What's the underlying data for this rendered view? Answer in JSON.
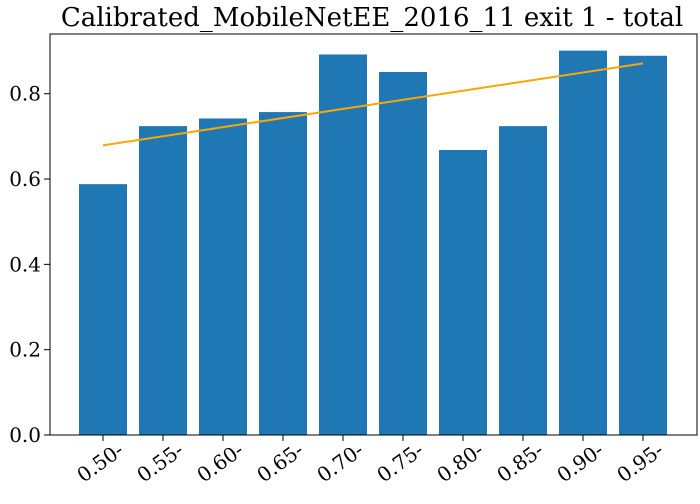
{
  "chart_data": {
    "type": "bar",
    "title": "Calibrated_MobileNetEE_2016_11 exit 1 - total",
    "xlabel": "",
    "ylabel": "",
    "categories": [
      "0.50-",
      "0.55-",
      "0.60-",
      "0.65-",
      "0.70-",
      "0.75-",
      "0.80-",
      "0.85-",
      "0.90-",
      "0.95-"
    ],
    "series": [
      {
        "values": [
          0.588,
          0.724,
          0.742,
          0.757,
          0.892,
          0.851,
          0.668,
          0.724,
          0.901,
          0.889
        ],
        "color": "#1f77b4"
      }
    ],
    "trend_line": {
      "start": 0.679,
      "end": 0.871,
      "color": "#ffa500"
    },
    "ylim": [
      0,
      0.94
    ],
    "yticks": [
      0.0,
      0.2,
      0.4,
      0.6,
      0.8
    ],
    "ytick_labels": [
      "0.0",
      "0.2",
      "0.4",
      "0.6",
      "0.8"
    ],
    "grid": false,
    "legend": "none"
  }
}
